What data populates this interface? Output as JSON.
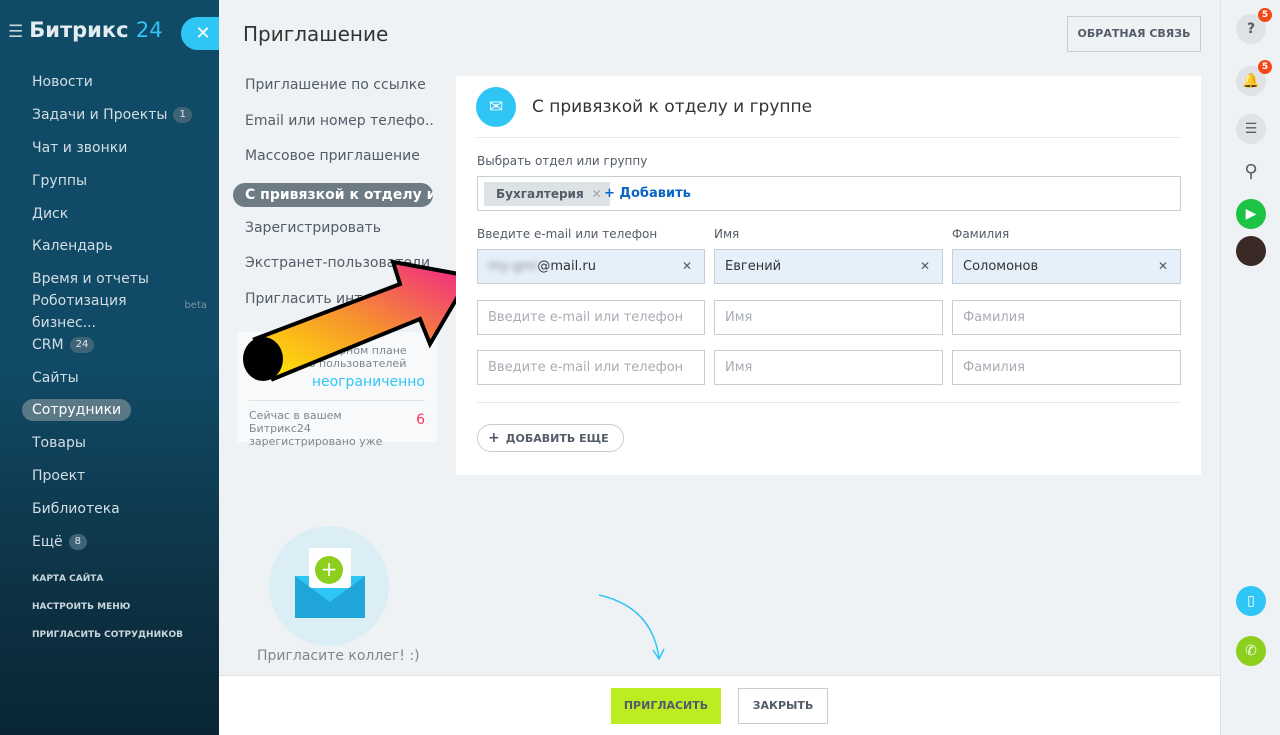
{
  "sidebar": {
    "logo": "Битрикс",
    "logo_num": "24",
    "items": [
      {
        "label": "Новости"
      },
      {
        "label": "Задачи и Проекты",
        "count": "1"
      },
      {
        "label": "Чат и звонки"
      },
      {
        "label": "Группы"
      },
      {
        "label": "Диск"
      },
      {
        "label": "Календарь"
      },
      {
        "label": "Время и отчеты"
      },
      {
        "label": "Роботизация бизнес...",
        "tag": "beta"
      },
      {
        "label": "CRM",
        "count": "24"
      },
      {
        "label": "Сайты"
      },
      {
        "label": "Сотрудники"
      },
      {
        "label": "Товары"
      },
      {
        "label": "Проект"
      },
      {
        "label": "Библиотека"
      },
      {
        "label": "Ещё",
        "count": "8"
      }
    ],
    "links": [
      "КАРТА САЙТА",
      "НАСТРОИТЬ МЕНЮ",
      "ПРИГЛАСИТЬ СОТРУДНИКОВ"
    ]
  },
  "panel": {
    "title": "Приглашение",
    "feedback": "ОБРАТНАЯ СВЯЗЬ",
    "menu": [
      "Приглашение по ссылке",
      "Email или номер телефо...",
      "Массовое приглашение",
      "С привязкой к отделу и ...",
      "Зарегистрировать",
      "Экстранет-пользователи",
      "Пригласить интеграторов"
    ],
    "info": {
      "plan": "На вашем тарифном плане количество пользователей",
      "unlimited": "неограниченно",
      "registered": "Сейчас в вашем Битрикс24 зарегистрировано уже",
      "count": "6"
    },
    "card": {
      "title": "С привязкой к отделу и группе",
      "dept_label": "Выбрать отдел или группу",
      "dept_tag": "Бухгалтерия",
      "add": "+ Добавить",
      "col_email": "Введите e-mail или телефон",
      "col_name": "Имя",
      "col_surname": "Фамилия",
      "row1": {
        "email": "@mail.ru",
        "name": "Евгений",
        "surname": "Соломонов"
      },
      "ph_email": "Введите e-mail или телефон",
      "ph_name": "Имя",
      "ph_surname": "Фамилия",
      "add_more": "ДОБАВИТЬ ЕЩЕ"
    },
    "invite_text": "Пригласите коллег! :)",
    "invite_btn": "ПРИГЛАСИТЬ",
    "close_btn": "ЗАКРЫТЬ"
  },
  "right": {
    "help_badge": "5",
    "notif_badge": "5"
  },
  "colors": {
    "accent": "#2fc6f6",
    "invite": "#bbed21",
    "badge": "#f54819"
  }
}
